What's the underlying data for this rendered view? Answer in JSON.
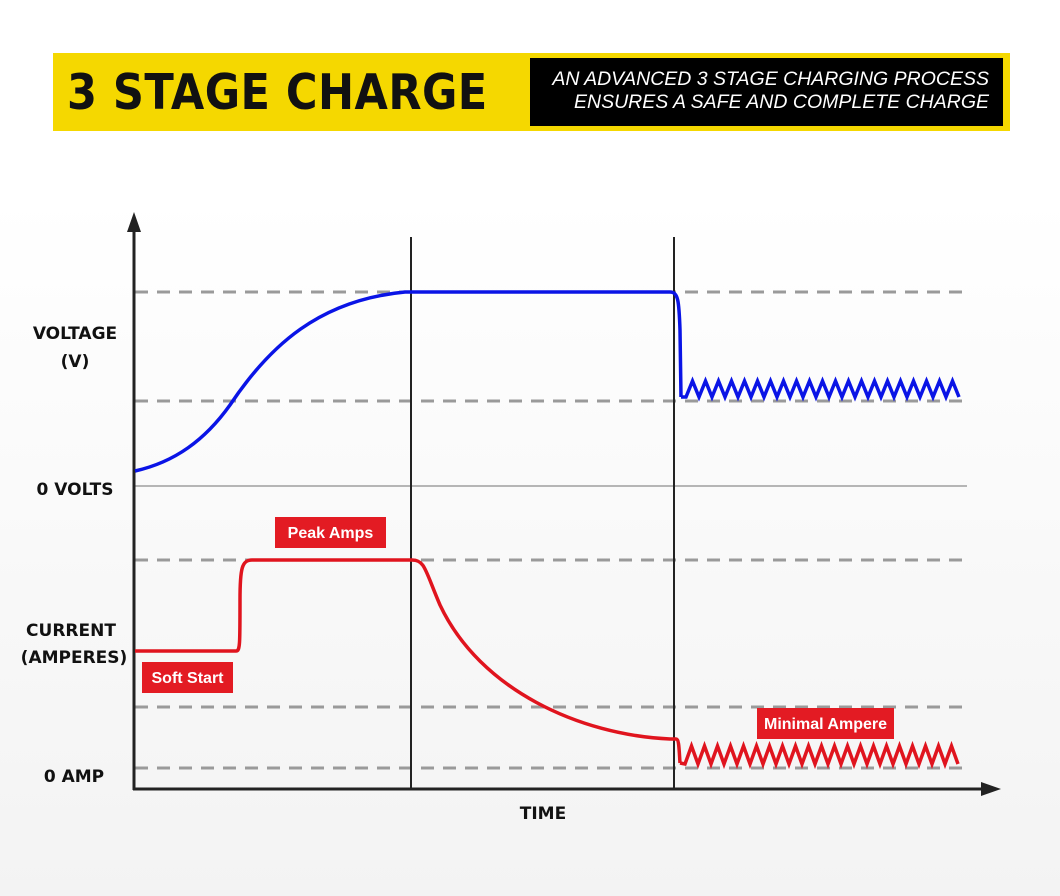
{
  "header": {
    "title": "3 STAGE CHARGE",
    "subtitle_line1": "AN ADVANCED 3 STAGE CHARGING PROCESS",
    "subtitle_line2": "ENSURES A SAFE AND COMPLETE CHARGE"
  },
  "labels": {
    "voltage_line1": "VOLTAGE",
    "voltage_line2": "(V)",
    "zero_volts": "0 VOLTS",
    "current_line1": "CURRENT",
    "current_line2": "(AMPERES)",
    "zero_amp": "0 AMP",
    "time": "TIME"
  },
  "annotations": {
    "soft_start": "Soft Start",
    "peak_amps": "Peak Amps",
    "minimal_ampere": "Minimal Ampere"
  },
  "colors": {
    "banner_yellow": "#f5d800",
    "voltage_line": "#0a14e6",
    "current_line": "#e0141e",
    "tag_red": "#e31b23",
    "dashed_grid": "#9a9a9a",
    "axis": "#222222"
  }
}
